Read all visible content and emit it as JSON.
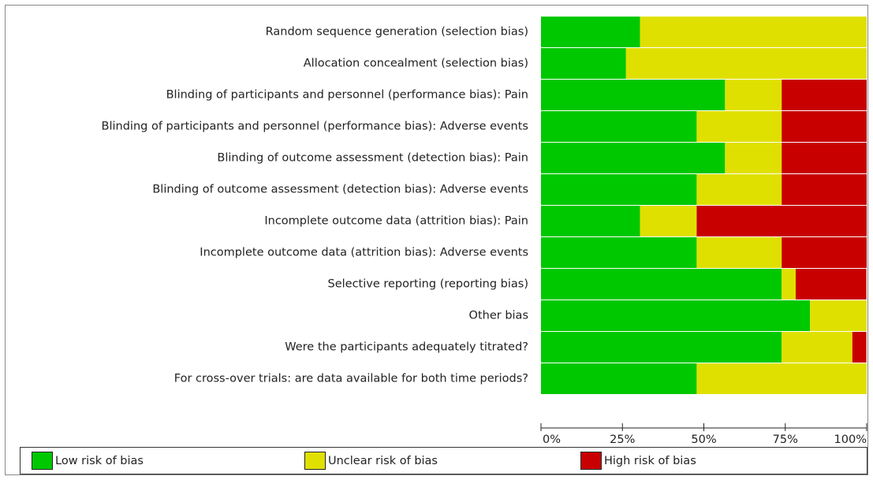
{
  "chart_data": {
    "type": "bar",
    "orientation": "horizontal",
    "stacked": true,
    "categories": [
      "Random sequence generation (selection bias)",
      "Allocation concealment (selection bias)",
      "Blinding of participants and personnel (performance bias): Pain",
      "Blinding of participants and personnel (performance bias): Adverse events",
      "Blinding of outcome assessment (detection bias): Pain",
      "Blinding of outcome assessment (detection bias): Adverse events",
      "Incomplete outcome data (attrition bias): Pain",
      "Incomplete outcome data (attrition bias): Adverse events",
      "Selective reporting (reporting bias)",
      "Other bias",
      "Were the participants adequately titrated?",
      "For cross-over trials: are data available for both time periods?"
    ],
    "series": [
      {
        "name": "Low risk of bias",
        "color": "#00c800",
        "values": [
          30.4,
          26.1,
          56.5,
          47.8,
          56.5,
          47.8,
          30.4,
          47.8,
          73.9,
          82.6,
          73.9,
          47.8
        ]
      },
      {
        "name": "Unclear risk of bias",
        "color": "#e0e000",
        "values": [
          69.6,
          73.9,
          17.4,
          26.1,
          17.4,
          26.1,
          17.4,
          26.1,
          4.3,
          17.4,
          21.7,
          52.2
        ]
      },
      {
        "name": "High risk of bias",
        "color": "#c80000",
        "values": [
          0,
          0,
          26.1,
          26.1,
          26.1,
          26.1,
          52.2,
          26.1,
          21.7,
          0,
          4.3,
          0
        ]
      }
    ],
    "xlim": [
      0,
      100
    ],
    "xticks": [
      {
        "value": 0,
        "label": "0%"
      },
      {
        "value": 25,
        "label": "25%"
      },
      {
        "value": 50,
        "label": "50%"
      },
      {
        "value": 75,
        "label": "75%"
      },
      {
        "value": 100,
        "label": "100%"
      }
    ]
  }
}
